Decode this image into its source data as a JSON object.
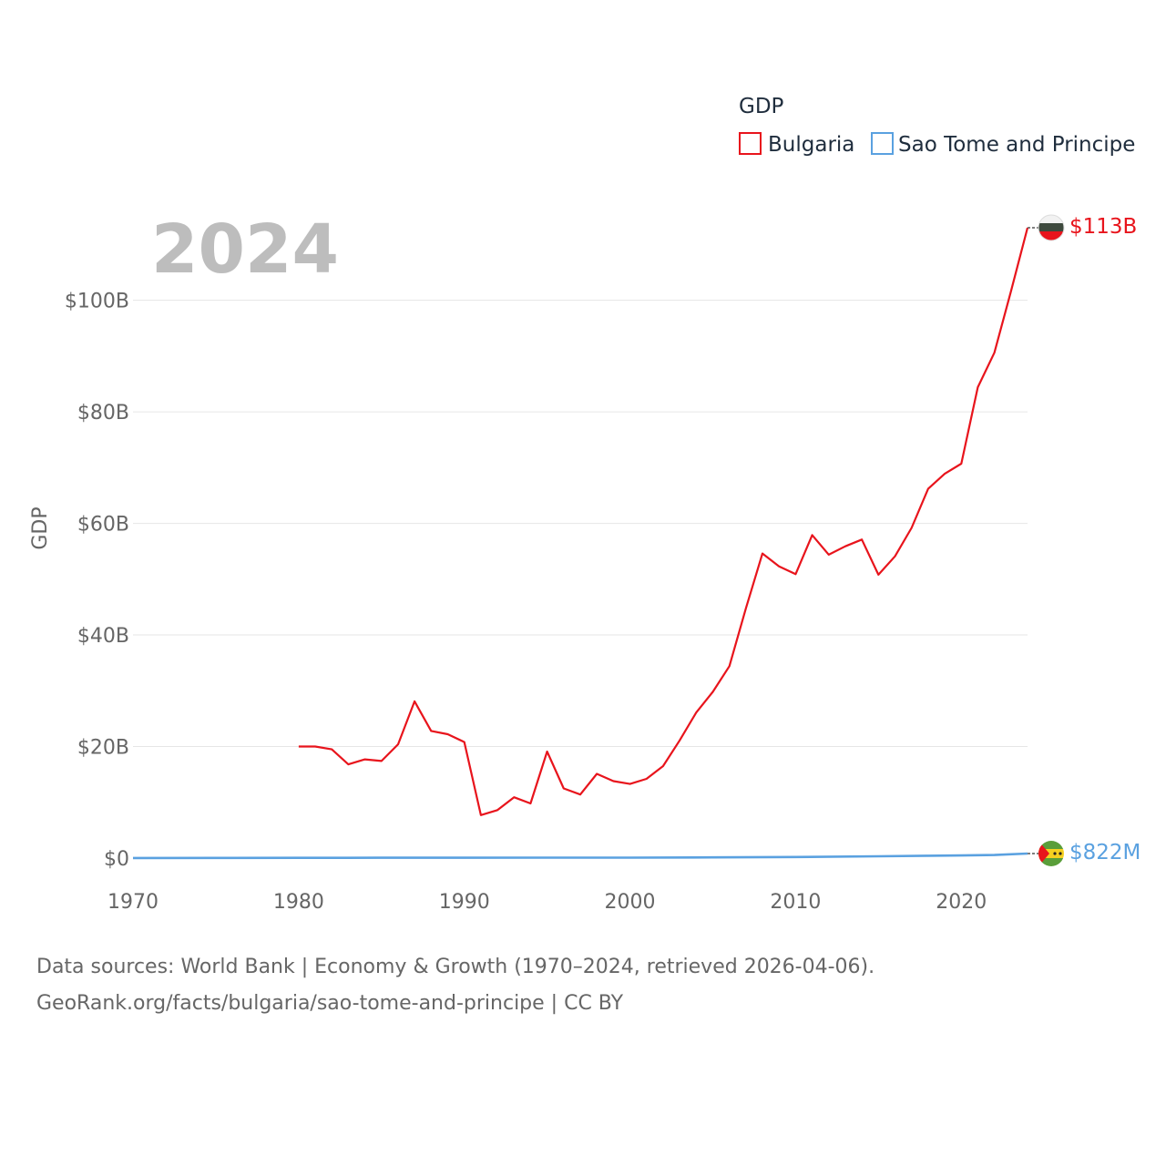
{
  "chart_data": {
    "type": "line",
    "ylabel": "GDP",
    "xlim": [
      1970,
      2024
    ],
    "ylim": [
      0,
      113
    ],
    "x_ticks": [
      1970,
      1980,
      1990,
      2000,
      2010,
      2020
    ],
    "y_ticks": [
      {
        "value": 0,
        "label": "$0"
      },
      {
        "value": 20,
        "label": "$20B"
      },
      {
        "value": 40,
        "label": "$40B"
      },
      {
        "value": 60,
        "label": "$60B"
      },
      {
        "value": 80,
        "label": "$80B"
      },
      {
        "value": 100,
        "label": "$100B"
      }
    ],
    "year_label": "2024",
    "legend_title": "GDP",
    "units": "billions USD",
    "series": [
      {
        "name": "Bulgaria",
        "color": "#e8141c",
        "end_label": "$113B",
        "flag": "bulgaria-flag",
        "x": [
          1980,
          1981,
          1982,
          1983,
          1984,
          1985,
          1986,
          1987,
          1988,
          1989,
          1990,
          1991,
          1992,
          1993,
          1994,
          1995,
          1996,
          1997,
          1998,
          1999,
          2000,
          2001,
          2002,
          2003,
          2004,
          2005,
          2006,
          2007,
          2008,
          2009,
          2010,
          2011,
          2012,
          2013,
          2014,
          2015,
          2016,
          2017,
          2018,
          2019,
          2020,
          2021,
          2022,
          2023,
          2024
        ],
        "values": [
          20.0,
          20.0,
          19.5,
          16.8,
          17.7,
          17.4,
          20.4,
          28.1,
          22.8,
          22.2,
          20.8,
          7.7,
          8.6,
          10.9,
          9.8,
          19.1,
          12.5,
          11.4,
          15.1,
          13.8,
          13.3,
          14.2,
          16.5,
          21.1,
          26.1,
          29.8,
          34.4,
          44.8,
          54.6,
          52.3,
          50.9,
          57.9,
          54.4,
          55.9,
          57.1,
          50.8,
          54.1,
          59.2,
          66.2,
          68.9,
          70.7,
          84.4,
          90.6,
          101.6,
          113.0
        ]
      },
      {
        "name": "Sao Tome and Principe",
        "color": "#5aa1e0",
        "end_label": "$822M",
        "flag": "sao-tome-flag",
        "x": [
          1970,
          1975,
          1980,
          1985,
          1990,
          1995,
          2000,
          2005,
          2010,
          2015,
          2018,
          2020,
          2022,
          2024
        ],
        "values": [
          0.02,
          0.04,
          0.05,
          0.06,
          0.07,
          0.08,
          0.08,
          0.13,
          0.2,
          0.32,
          0.42,
          0.47,
          0.55,
          0.822
        ]
      }
    ]
  },
  "footer": {
    "line1": "Data sources: World Bank | Economy & Growth (1970–2024, retrieved 2026-04-06).",
    "line2": "GeoRank.org/facts/bulgaria/sao-tome-and-principe | CC BY"
  }
}
